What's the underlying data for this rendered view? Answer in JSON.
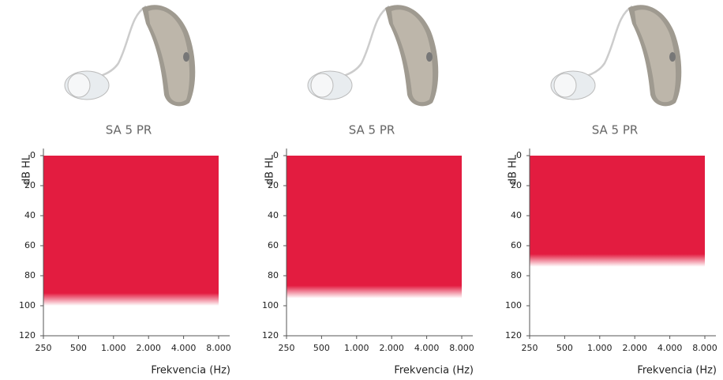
{
  "chart_data": [
    {
      "type": "area",
      "title": "SA 5 PR",
      "y_label": "dB HL",
      "x_label": "Frekvencia (Hz)",
      "x": [
        250,
        8000
      ],
      "values": [
        100,
        100
      ],
      "color": "#e31c40",
      "xlim": [
        250,
        8000
      ],
      "x_log": true,
      "xticks": [
        250,
        500,
        {
          "value": 1000,
          "label": "1.000"
        },
        {
          "value": 2000,
          "label": "2.000"
        },
        {
          "value": 4000,
          "label": "4.000"
        },
        {
          "value": 8000,
          "label": "8.000"
        }
      ],
      "ylim": [
        0,
        120
      ],
      "y_reversed": true,
      "yticks": [
        0,
        20,
        40,
        60,
        80,
        100,
        120
      ]
    },
    {
      "type": "area",
      "title": "SA 5  PR",
      "y_label": "dB HL",
      "x_label": "Frekvencia (Hz)",
      "x": [
        250,
        8000
      ],
      "values": [
        95,
        95
      ],
      "color": "#e31c40",
      "xlim": [
        250,
        8000
      ],
      "x_log": true,
      "xticks": [
        250,
        500,
        {
          "value": 1000,
          "label": "1.000"
        },
        {
          "value": 2000,
          "label": "2.000"
        },
        {
          "value": 4000,
          "label": "4.000"
        },
        {
          "value": 8000,
          "label": "8.000"
        }
      ],
      "ylim": [
        0,
        120
      ],
      "y_reversed": true,
      "yticks": [
        0,
        20,
        40,
        60,
        80,
        100,
        120
      ]
    },
    {
      "type": "area",
      "title": "SA 5  PR",
      "y_label": "dB HL",
      "x_label": "Frekvencia (Hz)",
      "x": [
        250,
        8000
      ],
      "values": [
        74,
        74
      ],
      "color": "#e31c40",
      "xlim": [
        250,
        8000
      ],
      "x_log": true,
      "xticks": [
        250,
        500,
        {
          "value": 1000,
          "label": "1.000"
        },
        {
          "value": 2000,
          "label": "2.000"
        },
        {
          "value": 4000,
          "label": "4.000"
        },
        {
          "value": 8000,
          "label": "8.000"
        }
      ],
      "ylim": [
        0,
        120
      ],
      "y_reversed": true,
      "yticks": [
        0,
        20,
        40,
        60,
        80,
        100,
        120
      ]
    }
  ]
}
